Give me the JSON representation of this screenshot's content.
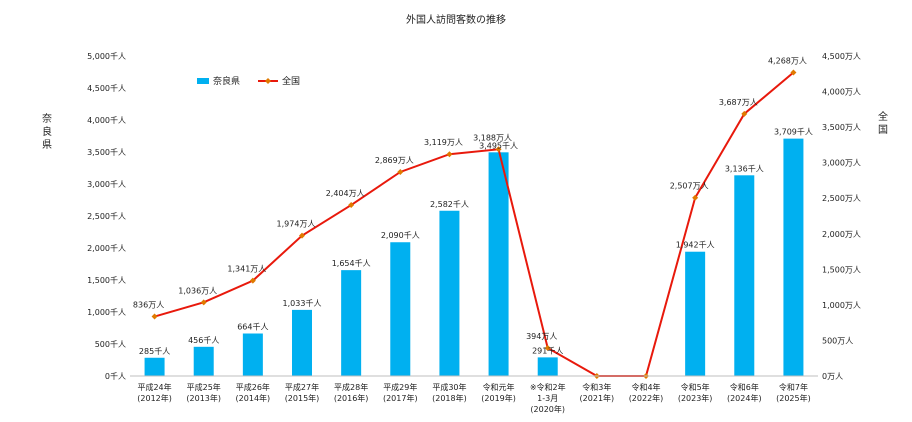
{
  "chart_data": {
    "type": "bar+line",
    "title": "外国人訪問客数の推移",
    "left_axis": {
      "title_chars": [
        "奈",
        "良",
        "県"
      ],
      "min": 0,
      "max": 5000,
      "step": 500,
      "tick_labels": [
        "0千人",
        "500千人",
        "1,000千人",
        "1,500千人",
        "2,000千人",
        "2,500千人",
        "3,000千人",
        "3,500千人",
        "4,000千人",
        "4,500千人",
        "5,000千人"
      ]
    },
    "right_axis": {
      "title_chars": [
        "全",
        "国"
      ],
      "min": 0,
      "max": 4500,
      "step": 500,
      "tick_labels": [
        "0万人",
        "500万人",
        "1,000万人",
        "1,500万人",
        "2,000万人",
        "2,500万人",
        "3,000万人",
        "3,500万人",
        "4,000万人",
        "4,500万人"
      ]
    },
    "categories": [
      [
        "平成24年",
        "(2012年)"
      ],
      [
        "平成25年",
        "(2013年)"
      ],
      [
        "平成26年",
        "(2014年)"
      ],
      [
        "平成27年",
        "(2015年)"
      ],
      [
        "平成28年",
        "(2016年)"
      ],
      [
        "平成29年",
        "(2017年)"
      ],
      [
        "平成30年",
        "(2018年)"
      ],
      [
        "令和元年",
        "(2019年)"
      ],
      [
        "※令和2年",
        "1-3月",
        "(2020年)"
      ],
      [
        "令和3年",
        "(2021年)"
      ],
      [
        "令和4年",
        "(2022年)"
      ],
      [
        "令和5年",
        "(2023年)"
      ],
      [
        "令和6年",
        "(2024年)"
      ],
      [
        "令和7年",
        "(2025年)"
      ]
    ],
    "series": [
      {
        "name": "奈良県",
        "kind": "bar",
        "axis": "left",
        "color": "#00b0f0",
        "values": [
          285,
          456,
          664,
          1033,
          1654,
          2090,
          2582,
          3495,
          291,
          null,
          null,
          1942,
          3136,
          3709
        ],
        "labels": [
          "285千人",
          "456千人",
          "664千人",
          "1,033千人",
          "1,654千人",
          "2,090千人",
          "2,582千人",
          "3,495千人",
          "291千人",
          "",
          "",
          "1,942千人",
          "3,136千人",
          "3,709千人"
        ]
      },
      {
        "name": "全国",
        "kind": "line",
        "axis": "right",
        "color": "#e8190c",
        "marker_color": "#e07a00",
        "values": [
          836,
          1036,
          1341,
          1974,
          2404,
          2869,
          3119,
          3188,
          394,
          0,
          0,
          2507,
          3687,
          4268
        ],
        "labels": [
          "836万人",
          "1,036万人",
          "1,341万人",
          "1,974万人",
          "2,404万人",
          "2,869万人",
          "3,119万人",
          "3,188万人",
          "394万人",
          "",
          "",
          "2,507万人",
          "3,687万人",
          "4,268万人"
        ]
      }
    ],
    "legend_position": "top-left",
    "grid": false
  }
}
